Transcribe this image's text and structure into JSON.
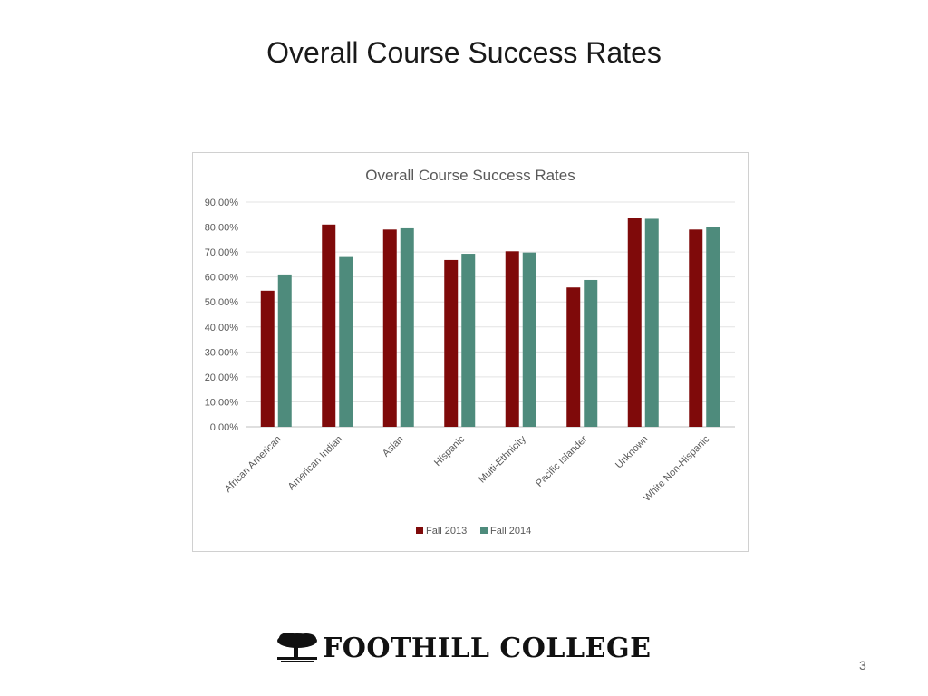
{
  "slide": {
    "title": "Overall Course Success Rates",
    "page_number": "3",
    "logo_text": "FOOTHILL COLLEGE"
  },
  "chart_data": {
    "type": "bar",
    "title": "Overall Course Success Rates",
    "categories": [
      "African American",
      "American Indian",
      "Asian",
      "Hispanic",
      "Multi-Ethnicity",
      "Pacific Islander",
      "Unknown",
      "White Non-Hispanic"
    ],
    "series": [
      {
        "name": "Fall 2013",
        "color": "#7f0a0a",
        "values": [
          54.5,
          81.0,
          79.0,
          66.8,
          70.3,
          55.8,
          83.8,
          79.0
        ]
      },
      {
        "name": "Fall 2014",
        "color": "#4e8b7c",
        "values": [
          61.0,
          68.0,
          79.5,
          69.3,
          69.8,
          58.8,
          83.3,
          80.0
        ]
      }
    ],
    "ylim": [
      0,
      90
    ],
    "yticks": [
      "0.00%",
      "10.00%",
      "20.00%",
      "30.00%",
      "40.00%",
      "50.00%",
      "60.00%",
      "70.00%",
      "80.00%",
      "90.00%"
    ],
    "grid": true,
    "legend_position": "bottom"
  }
}
